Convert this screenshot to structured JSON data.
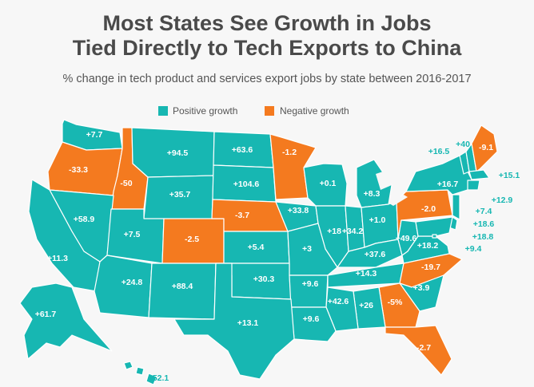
{
  "title_line1": "Most States See Growth in Jobs",
  "title_line2": "Tied Directly to Tech Exports to China",
  "subtitle": "% change in tech product and services export jobs by state between 2016-2017",
  "legend": {
    "positive": "Positive growth",
    "negative": "Negative growth"
  },
  "colors": {
    "positive": "#17b7b2",
    "negative": "#f47a1f",
    "background": "#f7f7f7",
    "land": "#ffffff"
  },
  "states": [
    {
      "state": "WA",
      "label": "+7.7",
      "value": 7.7
    },
    {
      "state": "OR",
      "label": "-33.3",
      "value": -33.3
    },
    {
      "state": "ID",
      "label": "-50",
      "value": -50
    },
    {
      "state": "MT",
      "label": "+94.5",
      "value": 94.5
    },
    {
      "state": "WY",
      "label": "+35.7",
      "value": 35.7
    },
    {
      "state": "ND",
      "label": "+63.6",
      "value": 63.6
    },
    {
      "state": "SD",
      "label": "+104.6",
      "value": 104.6
    },
    {
      "state": "MN",
      "label": "-1.2",
      "value": -1.2
    },
    {
      "state": "WI",
      "label": "+0.1",
      "value": 0.1
    },
    {
      "state": "MI",
      "label": "+8.3",
      "value": 8.3
    },
    {
      "state": "NV",
      "label": "+58.9",
      "value": 58.9
    },
    {
      "state": "CA",
      "label": "+11.3",
      "value": 11.3
    },
    {
      "state": "UT",
      "label": "+7.5",
      "value": 7.5
    },
    {
      "state": "CO",
      "label": "-2.5",
      "value": -2.5
    },
    {
      "state": "NE",
      "label": "-3.7",
      "value": -3.7
    },
    {
      "state": "IA",
      "label": "+33.8",
      "value": 33.8
    },
    {
      "state": "IL",
      "label": "+18",
      "value": 18
    },
    {
      "state": "IN",
      "label": "+34.2",
      "value": 34.2
    },
    {
      "state": "OH",
      "label": "+1.0",
      "value": 1.0
    },
    {
      "state": "PA",
      "label": "-2.0",
      "value": -2.0
    },
    {
      "state": "NY",
      "label": "+16.7",
      "value": 16.7
    },
    {
      "state": "KS",
      "label": "+5.4",
      "value": 5.4
    },
    {
      "state": "MO",
      "label": "+3",
      "value": 3
    },
    {
      "state": "KY",
      "label": "+37.6",
      "value": 37.6
    },
    {
      "state": "WV",
      "label": "+49.6",
      "value": 49.6
    },
    {
      "state": "VA",
      "label": "+18.2",
      "value": 18.2
    },
    {
      "state": "AZ",
      "label": "+24.8",
      "value": 24.8
    },
    {
      "state": "NM",
      "label": "+88.4",
      "value": 88.4
    },
    {
      "state": "OK",
      "label": "+30.3",
      "value": 30.3
    },
    {
      "state": "AR",
      "label": "+9.6",
      "value": 9.6
    },
    {
      "state": "TN",
      "label": "+14.3",
      "value": 14.3
    },
    {
      "state": "NC",
      "label": "-19.7",
      "value": -19.7
    },
    {
      "state": "SC",
      "label": "+3.9",
      "value": 3.9
    },
    {
      "state": "GA",
      "label": "-5%",
      "value": -5
    },
    {
      "state": "AL",
      "label": "+26",
      "value": 26
    },
    {
      "state": "MS",
      "label": "+42.6",
      "value": 42.6
    },
    {
      "state": "LA",
      "label": "+9.6",
      "value": 9.6
    },
    {
      "state": "TX",
      "label": "+13.1",
      "value": 13.1
    },
    {
      "state": "FL",
      "label": "-2.7",
      "value": -2.7
    },
    {
      "state": "AK",
      "label": "+61.7",
      "value": 61.7
    },
    {
      "state": "HI",
      "label": "+52.1",
      "value": 52.1
    },
    {
      "state": "VT",
      "label": "+16.5",
      "value": 16.5
    },
    {
      "state": "NH",
      "label": "+40",
      "value": 40
    },
    {
      "state": "ME",
      "label": "-9.1",
      "value": -9.1
    },
    {
      "state": "MA",
      "label": "+15.1",
      "value": 15.1
    },
    {
      "state": "CT",
      "label": "+12.9",
      "value": 12.9
    },
    {
      "state": "NJ",
      "label": "+7.4",
      "value": 7.4
    },
    {
      "state": "DE",
      "label": "+18.6",
      "value": 18.6
    },
    {
      "state": "MD",
      "label": "+18.8",
      "value": 18.8
    },
    {
      "state": "DC",
      "label": "+9.4",
      "value": 9.4
    }
  ]
}
